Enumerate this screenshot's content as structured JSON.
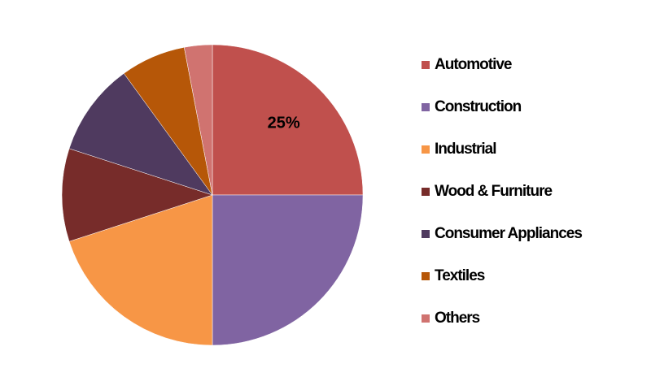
{
  "chart_data": {
    "type": "pie",
    "categories": [
      "Automotive",
      "Construction",
      "Industrial",
      "Wood & Furniture",
      "Consumer Appliances",
      "Textiles",
      "Others"
    ],
    "values": [
      25,
      25,
      20,
      10,
      10,
      7,
      3
    ],
    "value_labels": [
      "25%",
      null,
      null,
      null,
      null,
      null,
      null
    ],
    "colors": [
      "#c0504d",
      "#8064a2",
      "#f79646",
      "#772c2a",
      "#4f3a5f",
      "#b65708",
      "#d07370"
    ],
    "legend": "right"
  }
}
